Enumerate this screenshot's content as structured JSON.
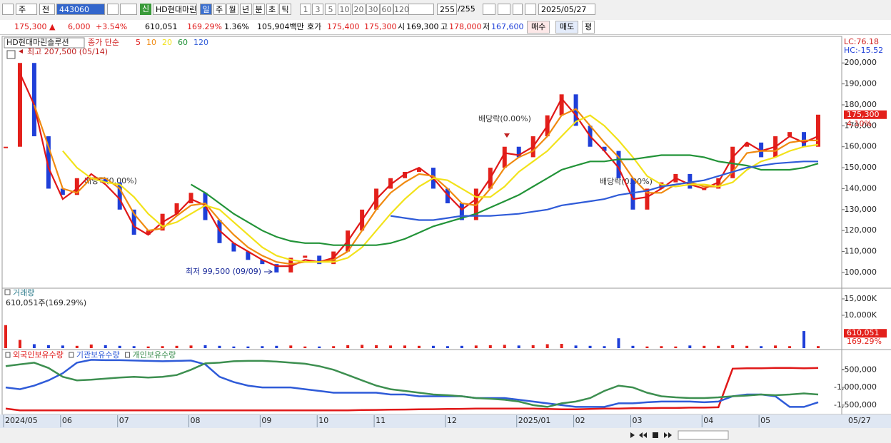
{
  "toolbar": {
    "period_select": "주",
    "mode_select": "전",
    "code": "443060",
    "new_badge": "신",
    "stock_name": "HD현대마린",
    "periods": [
      "일",
      "주",
      "월",
      "년",
      "분",
      "초",
      "틱"
    ],
    "intervals": [
      "1",
      "3",
      "5",
      "10",
      "20",
      "30",
      "60",
      "120"
    ],
    "count": "255",
    "count_total": "/255",
    "date": "2025/05/27"
  },
  "quote_bar": {
    "price": "175,300 ▲",
    "change": "6,000",
    "change_pct": "+3.54%",
    "volume": "610,051",
    "volume_pct": "169.29%",
    "turnover": "1.36%",
    "amount": "105,904백만",
    "ask_label": "호가",
    "ask": "175,400",
    "bid": "175,300",
    "open_label": "시",
    "open": "169,300",
    "high_label": "고",
    "high": "178,000",
    "low_label": "저",
    "low": "167,600",
    "buy": "매수",
    "sell": "매도",
    "avg": "평"
  },
  "chart_data": [
    {
      "type": "candlestick",
      "title": "HD현대마린솔루션",
      "legend_title": "종가 단순",
      "up_color": "#e3201b",
      "down_color": "#1f3fd8",
      "categories": [
        "2024/05",
        null,
        null,
        null,
        "06",
        null,
        null,
        null,
        "07",
        null,
        null,
        null,
        null,
        "08",
        null,
        null,
        null,
        null,
        "09",
        null,
        null,
        null,
        "10",
        null,
        null,
        null,
        "11",
        null,
        null,
        null,
        null,
        "12",
        null,
        null,
        null,
        null,
        "2025/01",
        null,
        null,
        null,
        "02",
        null,
        null,
        null,
        "03",
        null,
        null,
        null,
        null,
        "04",
        null,
        null,
        null,
        "05",
        null,
        null,
        null,
        null
      ],
      "values": [
        160000,
        200000,
        165000,
        140000,
        137000,
        145000,
        145000,
        143000,
        130000,
        118000,
        120000,
        128000,
        133000,
        138000,
        125000,
        114000,
        110000,
        106000,
        104000,
        100000,
        107000,
        108000,
        104000,
        110000,
        120000,
        130000,
        140000,
        145000,
        148000,
        150000,
        140000,
        133000,
        125000,
        140000,
        150000,
        160000,
        155000,
        165000,
        175000,
        185000,
        170000,
        160000,
        158000,
        145000,
        130000,
        140000,
        143000,
        147000,
        140000,
        140000,
        145000,
        160000,
        162000,
        155000,
        165000,
        167000,
        160000,
        175300
      ],
      "series": [
        {
          "name": "5",
          "color": "#e01818",
          "values": [
            null,
            195000,
            180000,
            150000,
            135000,
            140000,
            147000,
            142000,
            135000,
            122000,
            118000,
            124000,
            128000,
            135000,
            132000,
            120000,
            114000,
            110000,
            106000,
            103000,
            103000,
            106000,
            105000,
            107000,
            115000,
            125000,
            135000,
            142000,
            147000,
            150000,
            145000,
            137000,
            130000,
            135000,
            145000,
            157000,
            156000,
            160000,
            170000,
            183000,
            175000,
            165000,
            158000,
            150000,
            135000,
            136000,
            140000,
            145000,
            142000,
            140000,
            143000,
            155000,
            162000,
            158000,
            160000,
            165000,
            162000,
            165000
          ]
        },
        {
          "name": "10",
          "color": "#f08a10",
          "values": [
            null,
            null,
            180000,
            160000,
            140000,
            138000,
            145000,
            145000,
            140000,
            128000,
            120000,
            121000,
            127000,
            132000,
            133000,
            125000,
            118000,
            112000,
            108000,
            105000,
            104000,
            105000,
            105000,
            106000,
            110000,
            120000,
            130000,
            138000,
            143000,
            147000,
            146000,
            140000,
            133000,
            132000,
            140000,
            150000,
            155000,
            158000,
            165000,
            175000,
            178000,
            170000,
            162000,
            155000,
            145000,
            138000,
            138000,
            142000,
            143000,
            141000,
            141000,
            148000,
            157000,
            158000,
            158000,
            162000,
            163000,
            163000
          ]
        },
        {
          "name": "20",
          "color": "#f2e21a",
          "values": [
            null,
            null,
            null,
            null,
            158000,
            150000,
            145000,
            143000,
            142000,
            136000,
            128000,
            122000,
            124000,
            128000,
            132000,
            130000,
            124000,
            118000,
            112000,
            108000,
            106000,
            105000,
            105000,
            105000,
            107000,
            112000,
            120000,
            128000,
            135000,
            141000,
            145000,
            144000,
            140000,
            136000,
            136000,
            141000,
            148000,
            153000,
            158000,
            165000,
            172000,
            175000,
            170000,
            163000,
            155000,
            146000,
            142000,
            141000,
            142000,
            142000,
            141000,
            143000,
            149000,
            153000,
            155000,
            158000,
            160000,
            161000
          ]
        },
        {
          "name": "60",
          "color": "#229338",
          "values": [
            null,
            null,
            null,
            null,
            null,
            null,
            null,
            null,
            null,
            null,
            null,
            null,
            null,
            142000,
            138000,
            133000,
            128000,
            124000,
            120000,
            117000,
            115000,
            114000,
            114000,
            113000,
            113000,
            113000,
            113000,
            114000,
            116000,
            119000,
            122000,
            124000,
            126000,
            128000,
            131000,
            134000,
            137000,
            141000,
            145000,
            149000,
            151000,
            153000,
            153000,
            154000,
            154000,
            155000,
            156000,
            156000,
            156000,
            155000,
            153000,
            152000,
            151000,
            149000,
            149000,
            149000,
            150000,
            152000
          ]
        },
        {
          "name": "120",
          "color": "#2f5bd8",
          "values": [
            null,
            null,
            null,
            null,
            null,
            null,
            null,
            null,
            null,
            null,
            null,
            null,
            null,
            null,
            null,
            null,
            null,
            null,
            null,
            null,
            null,
            null,
            null,
            null,
            null,
            null,
            null,
            127000,
            126000,
            125000,
            125000,
            126000,
            127000,
            127000,
            127000,
            127500,
            128000,
            129000,
            130000,
            132000,
            133000,
            134000,
            135000,
            137000,
            138000,
            139000,
            141000,
            142000,
            143000,
            144000,
            146000,
            148000,
            150000,
            151000,
            152000,
            152500,
            153000,
            153000
          ]
        }
      ],
      "ylim": [
        93500,
        212000
      ],
      "yticks": [
        {
          "value": 100000,
          "label": "100,000"
        },
        {
          "value": 110000,
          "label": "110,000"
        },
        {
          "value": 120000,
          "label": "120,000"
        },
        {
          "value": 130000,
          "label": "130,000"
        },
        {
          "value": 140000,
          "label": "140,000"
        },
        {
          "value": 150000,
          "label": "150,000"
        },
        {
          "value": 160000,
          "label": "160,000"
        },
        {
          "value": 170000,
          "label": "170,000"
        },
        {
          "value": 180000,
          "label": "180,000"
        },
        {
          "value": 190000,
          "label": "190,000"
        },
        {
          "value": 200000,
          "label": "200,000"
        }
      ],
      "high_annotation": "최고 207,500 (05/14)",
      "low_annotation": "최저 99,500 (09/09)",
      "ex_dividend": [
        "배당락(0.00%)",
        "배당락(0.00%)",
        "배당락(0.00%)"
      ],
      "lc": "LC:76.18",
      "hc": "HC:-15.52",
      "last_value_label": "175,300",
      "last_change_label": "4.10%",
      "x_end_label": "05/27"
    },
    {
      "type": "bar",
      "title": "거래량",
      "info": "610,051주(169.29%)",
      "values": [
        7000,
        2500,
        1200,
        900,
        800,
        700,
        1100,
        900,
        700,
        600,
        500,
        600,
        700,
        800,
        900,
        700,
        500,
        500,
        600,
        700,
        800,
        500,
        500,
        600,
        900,
        1000,
        900,
        800,
        800,
        700,
        700,
        600,
        700,
        800,
        900,
        1000,
        800,
        900,
        1200,
        1300,
        800,
        700,
        600,
        3000,
        700,
        500,
        600,
        500,
        800,
        700,
        700,
        900,
        700,
        600,
        800,
        600,
        5200,
        610.051
      ],
      "ylim": [
        0,
        17600
      ],
      "yticks": [
        {
          "value": 10000,
          "label": "10,000K"
        },
        {
          "value": 15000,
          "label": "15,000K"
        }
      ],
      "last_value_label": "610,051",
      "last_change_label": "169.29%"
    },
    {
      "type": "line",
      "series": [
        {
          "name": "외국인보유수량",
          "color": "#e01818",
          "values": [
            -1600000,
            -1650000,
            -1650000,
            -1650000,
            -1650000,
            -1650000,
            -1650000,
            -1650000,
            -1650000,
            -1650000,
            -1650000,
            -1650000,
            -1650000,
            -1650000,
            -1650000,
            -1650000,
            -1650000,
            -1650000,
            -1650000,
            -1650000,
            -1650000,
            -1650000,
            -1650000,
            -1650000,
            -1650000,
            -1640000,
            -1635000,
            -1630000,
            -1625000,
            -1620000,
            -1615000,
            -1610000,
            -1605000,
            -1600000,
            -1600000,
            -1600000,
            -1600000,
            -1600000,
            -1610000,
            -1620000,
            -1620000,
            -1610000,
            -1600000,
            -1600000,
            -1590000,
            -1590000,
            -1580000,
            -1580000,
            -1570000,
            -1570000,
            -1560000,
            -470000,
            -460000,
            -460000,
            -450000,
            -450000,
            -460000,
            -450000
          ]
        },
        {
          "name": "기관보유수량",
          "color": "#2f5bd8",
          "values": [
            -1000000,
            -1050000,
            -950000,
            -800000,
            -600000,
            -300000,
            -220000,
            -230000,
            -230000,
            -240000,
            -250000,
            -260000,
            -250000,
            -240000,
            -350000,
            -700000,
            -850000,
            -950000,
            -1000000,
            -1000000,
            -1000000,
            -1050000,
            -1100000,
            -1150000,
            -1150000,
            -1150000,
            -1150000,
            -1200000,
            -1200000,
            -1250000,
            -1250000,
            -1250000,
            -1250000,
            -1300000,
            -1300000,
            -1300000,
            -1350000,
            -1400000,
            -1450000,
            -1500000,
            -1550000,
            -1550000,
            -1550000,
            -1450000,
            -1450000,
            -1420000,
            -1400000,
            -1400000,
            -1400000,
            -1420000,
            -1400000,
            -1250000,
            -1200000,
            -1200000,
            -1250000,
            -1550000,
            -1550000,
            -1420000
          ]
        },
        {
          "name": "개인보유수량",
          "color": "#3d8f50",
          "values": [
            -400000,
            -350000,
            -300000,
            -450000,
            -700000,
            -800000,
            -780000,
            -750000,
            -720000,
            -700000,
            -720000,
            -700000,
            -650000,
            -500000,
            -320000,
            -300000,
            -260000,
            -250000,
            -250000,
            -270000,
            -300000,
            -330000,
            -400000,
            -500000,
            -650000,
            -800000,
            -950000,
            -1050000,
            -1100000,
            -1150000,
            -1200000,
            -1220000,
            -1250000,
            -1300000,
            -1320000,
            -1350000,
            -1400000,
            -1500000,
            -1550000,
            -1450000,
            -1400000,
            -1300000,
            -1100000,
            -950000,
            -1000000,
            -1150000,
            -1250000,
            -1280000,
            -1300000,
            -1300000,
            -1280000,
            -1250000,
            -1230000,
            -1200000,
            -1220000,
            -1200000,
            -1170000,
            -1200000
          ]
        }
      ],
      "ylim": [
        -1704000,
        30000
      ],
      "yticks": [
        {
          "value": -1500000,
          "label": "-1,500,000"
        },
        {
          "value": -1000000,
          "label": "-1,000,000"
        },
        {
          "value": -500000,
          "label": "-500,000"
        }
      ]
    }
  ]
}
